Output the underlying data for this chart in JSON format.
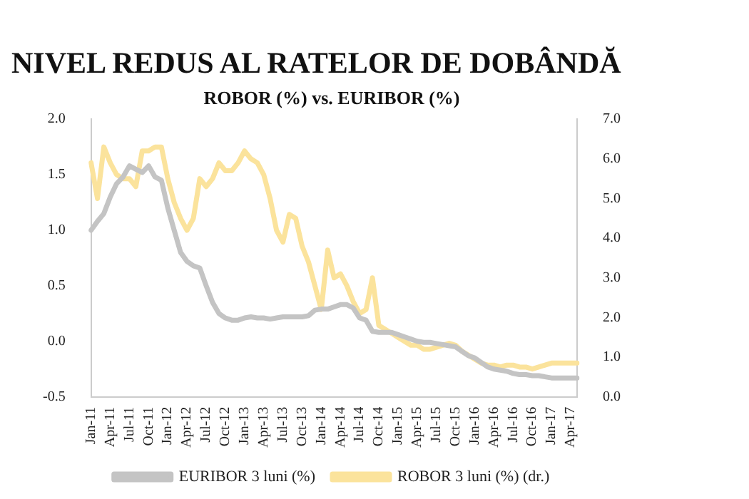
{
  "chart_data": {
    "type": "line",
    "title": "NIVEL REDUS AL RATELOR DE DOBÂNDĂ",
    "subtitle": "ROBOR (%) vs. EURIBOR (%)",
    "categories": [
      "Jan-11",
      null,
      null,
      "Apr-11",
      null,
      null,
      "Jul-11",
      null,
      null,
      "Oct-11",
      null,
      null,
      "Jan-12",
      null,
      null,
      "Apr-12",
      null,
      null,
      "Jul-12",
      null,
      null,
      "Oct-12",
      null,
      null,
      "Jan-13",
      null,
      null,
      "Apr-13",
      null,
      null,
      "Jul-13",
      null,
      null,
      "Oct-13",
      null,
      null,
      "Jan-14",
      null,
      null,
      "Apr-14",
      null,
      null,
      "Jul-14",
      null,
      null,
      "Oct-14",
      null,
      null,
      "Jan-15",
      null,
      null,
      "Apr-15",
      null,
      null,
      "Jul-15",
      null,
      null,
      "Oct-15",
      null,
      null,
      "Jan-16",
      null,
      null,
      "Apr-16",
      null,
      null,
      "Jul-16",
      null,
      null,
      "Oct-16",
      null,
      null,
      "Jan-17",
      null,
      null,
      "Apr-17",
      null
    ],
    "series": [
      {
        "name": "EURIBOR 3 luni (%)",
        "color": "#c4c4c4",
        "values": [
          1.0,
          1.08,
          1.15,
          1.3,
          1.42,
          1.48,
          1.58,
          1.55,
          1.52,
          1.58,
          1.48,
          1.45,
          1.2,
          1.0,
          0.8,
          0.72,
          0.68,
          0.66,
          0.5,
          0.35,
          0.25,
          0.21,
          0.19,
          0.19,
          0.21,
          0.22,
          0.21,
          0.21,
          0.2,
          0.21,
          0.22,
          0.22,
          0.22,
          0.22,
          0.23,
          0.28,
          0.29,
          0.29,
          0.31,
          0.33,
          0.33,
          0.3,
          0.21,
          0.19,
          0.09,
          0.08,
          0.08,
          0.08,
          0.06,
          0.04,
          0.02,
          0.0,
          -0.01,
          -0.01,
          -0.02,
          -0.03,
          -0.04,
          -0.05,
          -0.09,
          -0.13,
          -0.15,
          -0.19,
          -0.23,
          -0.25,
          -0.26,
          -0.27,
          -0.29,
          -0.3,
          -0.3,
          -0.31,
          -0.31,
          -0.32,
          -0.33,
          -0.33,
          -0.33,
          -0.33,
          -0.33
        ]
      },
      {
        "name": "ROBOR 3 luni (%) (dr.)",
        "color": "#fbe39c",
        "axis": "y2",
        "values": [
          5.9,
          5.0,
          6.3,
          5.9,
          5.6,
          5.5,
          5.5,
          5.3,
          6.2,
          6.2,
          6.3,
          6.3,
          5.5,
          4.9,
          4.5,
          4.2,
          4.5,
          5.5,
          5.3,
          5.5,
          5.9,
          5.7,
          5.7,
          5.9,
          6.2,
          6.0,
          5.9,
          5.6,
          5.0,
          4.2,
          3.9,
          4.6,
          4.5,
          3.8,
          3.4,
          2.8,
          2.2,
          3.7,
          3.0,
          3.1,
          2.8,
          2.4,
          2.1,
          2.2,
          3.0,
          1.8,
          1.7,
          1.6,
          1.5,
          1.4,
          1.3,
          1.3,
          1.2,
          1.2,
          1.25,
          1.3,
          1.35,
          1.3,
          1.15,
          1.05,
          0.95,
          0.85,
          0.8,
          0.8,
          0.75,
          0.8,
          0.8,
          0.75,
          0.75,
          0.7,
          0.75,
          0.8,
          0.85,
          0.85,
          0.85,
          0.85,
          0.85
        ]
      }
    ],
    "ylim": [
      -0.5,
      2.0
    ],
    "yticks": [
      {
        "value": -0.5,
        "label": "-0.5"
      },
      {
        "value": 0,
        "label": "0.0"
      },
      {
        "value": 0.5,
        "label": "0.5"
      },
      {
        "value": 1,
        "label": "1.0"
      },
      {
        "value": 1.5,
        "label": "1.5"
      },
      {
        "value": 2,
        "label": "2.0"
      }
    ],
    "y2lim": [
      0,
      7
    ],
    "y2ticks": [
      {
        "value": 0,
        "label": "0.0"
      },
      {
        "value": 1,
        "label": "1.0"
      },
      {
        "value": 2,
        "label": "2.0"
      },
      {
        "value": 3,
        "label": "3.0"
      },
      {
        "value": 4,
        "label": "4.0"
      },
      {
        "value": 5,
        "label": "5.0"
      },
      {
        "value": 6,
        "label": "6.0"
      },
      {
        "value": 7,
        "label": "7.0"
      }
    ],
    "legend": "bottom",
    "grid": false,
    "marker": "none",
    "line_style": "solid"
  }
}
